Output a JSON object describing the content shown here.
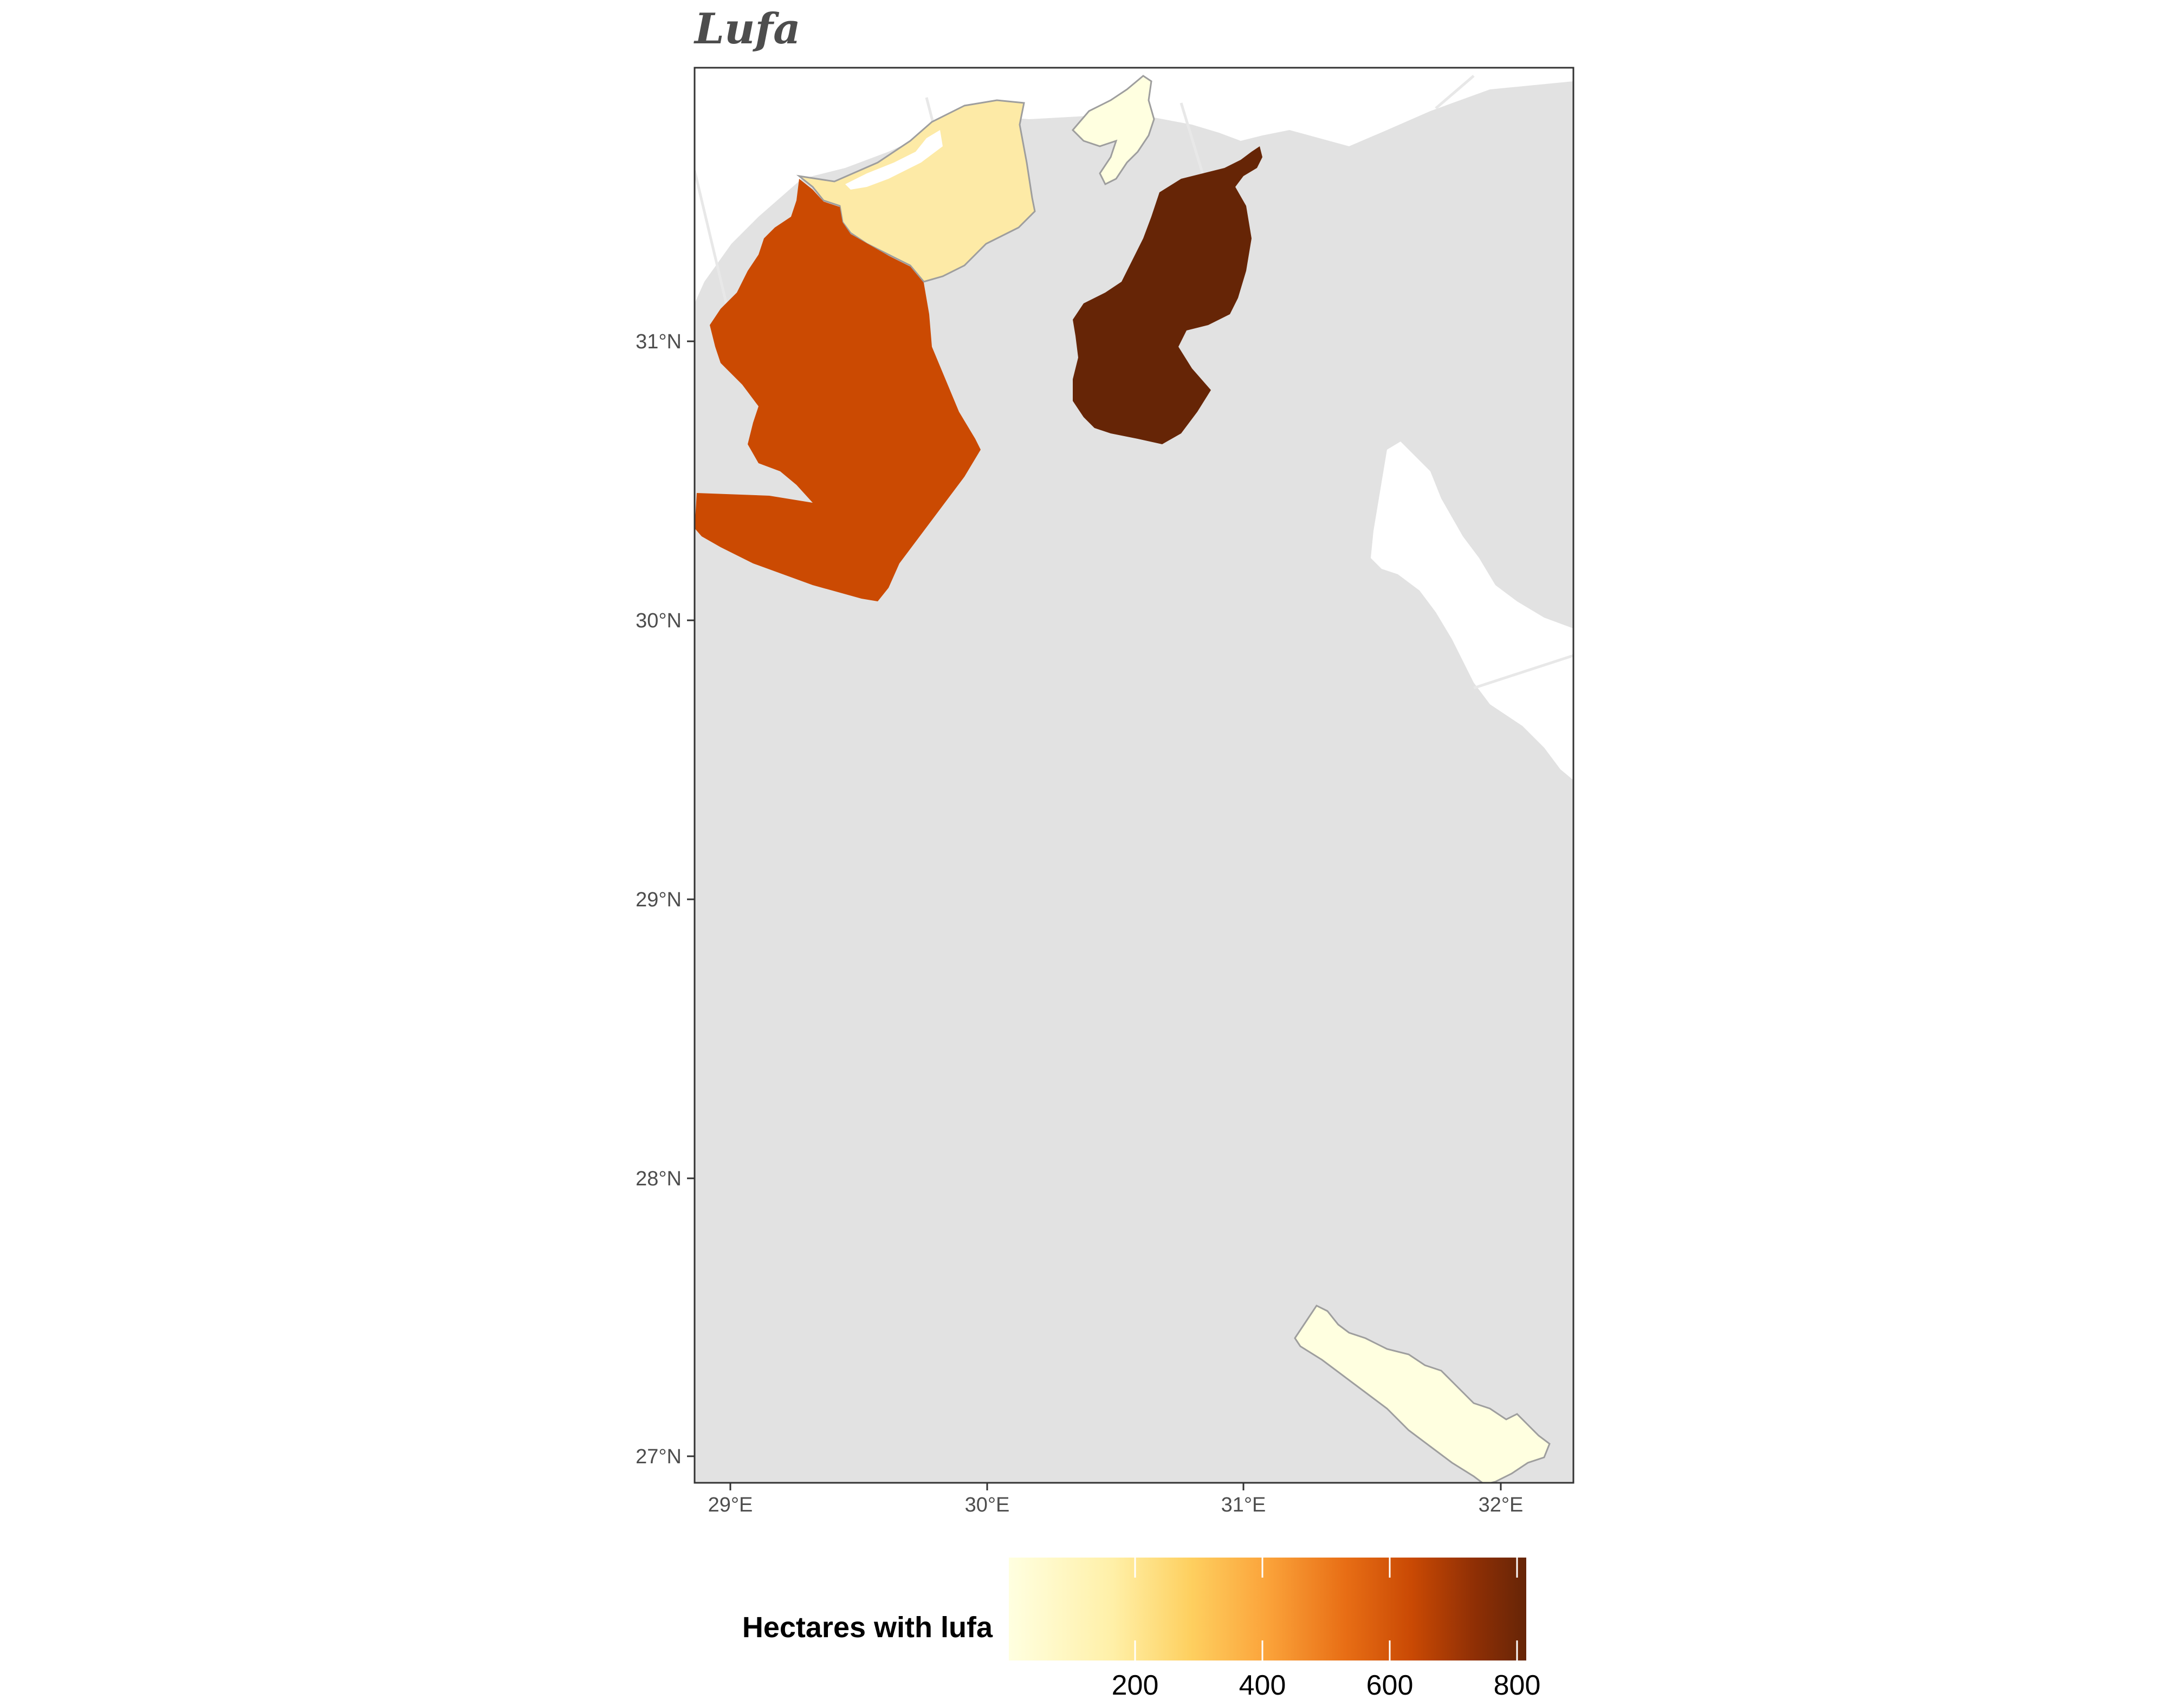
{
  "title": "Lufa",
  "map": {
    "x_axis_labels": [
      "29°E",
      "30°E",
      "31°E",
      "32°E"
    ],
    "y_axis_labels": [
      "31°N",
      "30°N",
      "29°N",
      "28°N",
      "27°N"
    ],
    "background_color": "#e2e2e2",
    "outside_color": "#ffffff",
    "regions": [
      {
        "id": "west-region",
        "value": 610,
        "color": "#cb4a02"
      },
      {
        "id": "north-coastal-region",
        "value": 130,
        "color": "#fdeaa6"
      },
      {
        "id": "central-north-region",
        "value": 820,
        "color": "#662506"
      },
      {
        "id": "delta-region",
        "value": 15,
        "color": "#ffffe0"
      },
      {
        "id": "southern-valley-region",
        "value": 12,
        "color": "#ffffe0"
      }
    ]
  },
  "legend": {
    "title": "Hectares with lufa",
    "tick_labels": [
      "200",
      "400",
      "600",
      "800"
    ],
    "tick_values": [
      200,
      400,
      600,
      800
    ],
    "range": [
      0,
      820
    ],
    "colors": [
      "#ffffd4",
      "#fee391",
      "#fec44f",
      "#fe9929",
      "#ec7014",
      "#cc4c02",
      "#8c2d04",
      "#662506"
    ]
  }
}
